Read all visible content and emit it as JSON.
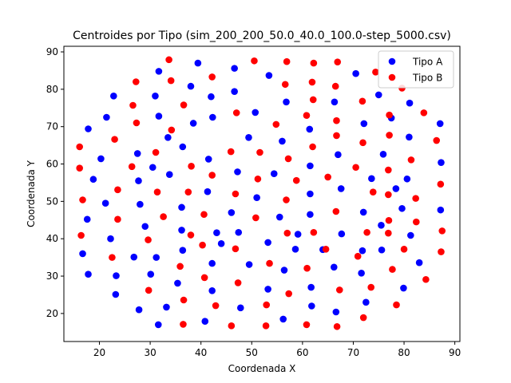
{
  "chart_data": {
    "type": "scatter",
    "title": "Centroides por Tipo (sim_200_200_50.0_40.0_100.0-step_5000.csv)",
    "xlabel": "Coordenada X",
    "ylabel": "Coordenada Y",
    "xlim": [
      13,
      91
    ],
    "ylim": [
      12.5,
      91.5
    ],
    "xticks": [
      20,
      30,
      40,
      50,
      60,
      70,
      80,
      90
    ],
    "yticks": [
      20,
      30,
      40,
      50,
      60,
      70,
      80,
      90
    ],
    "grid": false,
    "legend_position": "top-right",
    "series": [
      {
        "name": "Tipo A",
        "color": "#0000ff",
        "points": [
          [
            31.7,
            84.8
          ],
          [
            39.4,
            87.0
          ],
          [
            46.6,
            85.6
          ],
          [
            53.4,
            83.7
          ],
          [
            70.5,
            84.2
          ],
          [
            22.8,
            78.2
          ],
          [
            31.0,
            78.2
          ],
          [
            38.0,
            80.8
          ],
          [
            42.0,
            78.0
          ],
          [
            46.6,
            79.4
          ],
          [
            56.8,
            76.6
          ],
          [
            66.3,
            76.6
          ],
          [
            75.0,
            78.5
          ],
          [
            81.1,
            76.3
          ],
          [
            21.4,
            72.5
          ],
          [
            31.7,
            72.8
          ],
          [
            38.5,
            70.9
          ],
          [
            42.3,
            72.5
          ],
          [
            50.7,
            73.8
          ],
          [
            61.4,
            69.3
          ],
          [
            72.1,
            70.8
          ],
          [
            77.5,
            72.3
          ],
          [
            87.1,
            70.8
          ],
          [
            17.8,
            69.4
          ],
          [
            27.5,
            62.8
          ],
          [
            33.5,
            67.1
          ],
          [
            36.4,
            64.6
          ],
          [
            49.4,
            67.1
          ],
          [
            56.0,
            66.1
          ],
          [
            67.0,
            62.5
          ],
          [
            75.9,
            62.6
          ],
          [
            81.0,
            67.2
          ],
          [
            20.3,
            61.4
          ],
          [
            30.5,
            59.1
          ],
          [
            41.5,
            61.3
          ],
          [
            47.2,
            57.9
          ],
          [
            54.4,
            57.4
          ],
          [
            61.5,
            59.5
          ],
          [
            73.6,
            56.1
          ],
          [
            80.6,
            56.0
          ],
          [
            87.3,
            60.4
          ],
          [
            18.8,
            55.9
          ],
          [
            27.7,
            55.5
          ],
          [
            33.8,
            57.2
          ],
          [
            41.3,
            52.6
          ],
          [
            51.0,
            51.0
          ],
          [
            61.5,
            52.0
          ],
          [
            67.6,
            53.4
          ],
          [
            78.4,
            53.4
          ],
          [
            21.2,
            49.5
          ],
          [
            28.0,
            49.2
          ],
          [
            36.2,
            48.4
          ],
          [
            46.0,
            47.0
          ],
          [
            55.5,
            45.8
          ],
          [
            61.5,
            46.5
          ],
          [
            72.0,
            47.1
          ],
          [
            79.6,
            48.1
          ],
          [
            87.2,
            47.7
          ],
          [
            17.6,
            45.2
          ],
          [
            29.0,
            43.3
          ],
          [
            36.2,
            42.3
          ],
          [
            43.1,
            41.6
          ],
          [
            47.4,
            41.7
          ],
          [
            59.1,
            41.2
          ],
          [
            67.7,
            41.3
          ],
          [
            75.5,
            43.6
          ],
          [
            81.3,
            40.9
          ],
          [
            22.2,
            40.0
          ],
          [
            31.2,
            35.0
          ],
          [
            36.4,
            36.9
          ],
          [
            44.0,
            38.7
          ],
          [
            53.2,
            39.0
          ],
          [
            58.6,
            37.2
          ],
          [
            64.0,
            37.1
          ],
          [
            71.8,
            36.8
          ],
          [
            75.6,
            37.0
          ],
          [
            16.7,
            36.0
          ],
          [
            26.8,
            35.1
          ],
          [
            30.1,
            30.5
          ],
          [
            42.2,
            33.4
          ],
          [
            49.5,
            33.1
          ],
          [
            56.4,
            31.6
          ],
          [
            66.2,
            32.4
          ],
          [
            71.6,
            30.8
          ],
          [
            83.0,
            33.6
          ],
          [
            17.8,
            30.5
          ],
          [
            23.3,
            30.1
          ],
          [
            35.4,
            28.1
          ],
          [
            42.2,
            26.1
          ],
          [
            53.2,
            26.5
          ],
          [
            61.7,
            27.0
          ],
          [
            72.5,
            23.0
          ],
          [
            79.9,
            26.8
          ],
          [
            23.2,
            25.1
          ],
          [
            27.8,
            21.0
          ],
          [
            33.2,
            21.7
          ],
          [
            40.8,
            17.9
          ],
          [
            47.8,
            21.5
          ],
          [
            56.2,
            18.5
          ],
          [
            61.8,
            22.0
          ],
          [
            66.6,
            20.4
          ],
          [
            31.6,
            17.0
          ]
        ]
      },
      {
        "name": "Tipo B",
        "color": "#ff0000",
        "points": [
          [
            33.7,
            87.9
          ],
          [
            50.5,
            87.6
          ],
          [
            56.9,
            87.4
          ],
          [
            62.2,
            87.0
          ],
          [
            66.9,
            87.3
          ],
          [
            74.4,
            84.6
          ],
          [
            27.2,
            82.0
          ],
          [
            34.1,
            82.3
          ],
          [
            42.2,
            83.3
          ],
          [
            56.6,
            81.3
          ],
          [
            61.9,
            81.9
          ],
          [
            66.5,
            80.8
          ],
          [
            79.6,
            80.3
          ],
          [
            26.6,
            75.7
          ],
          [
            36.6,
            75.8
          ],
          [
            47.0,
            73.7
          ],
          [
            60.8,
            73.0
          ],
          [
            62.1,
            77.2
          ],
          [
            71.8,
            76.8
          ],
          [
            77.1,
            73.1
          ],
          [
            83.9,
            73.7
          ],
          [
            27.3,
            71.0
          ],
          [
            34.2,
            69.1
          ],
          [
            54.8,
            70.6
          ],
          [
            66.7,
            71.6
          ],
          [
            71.9,
            65.7
          ],
          [
            77.1,
            67.7
          ],
          [
            86.4,
            66.3
          ],
          [
            16.1,
            64.6
          ],
          [
            23.0,
            66.6
          ],
          [
            31.1,
            63.1
          ],
          [
            45.9,
            63.3
          ],
          [
            51.6,
            63.1
          ],
          [
            57.2,
            61.4
          ],
          [
            62.0,
            64.6
          ],
          [
            66.7,
            67.6
          ],
          [
            70.5,
            59.1
          ],
          [
            16.1,
            58.9
          ],
          [
            26.4,
            59.3
          ],
          [
            38.1,
            59.4
          ],
          [
            42.2,
            57.0
          ],
          [
            51.2,
            56.0
          ],
          [
            58.8,
            55.6
          ],
          [
            65.0,
            56.5
          ],
          [
            76.9,
            58.4
          ],
          [
            81.4,
            61.1
          ],
          [
            16.7,
            50.4
          ],
          [
            23.6,
            53.1
          ],
          [
            31.4,
            52.5
          ],
          [
            37.5,
            52.5
          ],
          [
            46.8,
            52.0
          ],
          [
            56.8,
            50.4
          ],
          [
            66.6,
            47.3
          ],
          [
            73.9,
            52.5
          ],
          [
            76.9,
            51.8
          ],
          [
            82.3,
            50.8
          ],
          [
            87.2,
            54.6
          ],
          [
            23.6,
            45.2
          ],
          [
            32.6,
            45.9
          ],
          [
            40.6,
            46.5
          ],
          [
            50.8,
            45.6
          ],
          [
            72.7,
            41.7
          ],
          [
            77.0,
            44.9
          ],
          [
            82.4,
            44.5
          ],
          [
            16.4,
            40.9
          ],
          [
            29.6,
            39.7
          ],
          [
            38.0,
            41.0
          ],
          [
            57.0,
            41.5
          ],
          [
            62.2,
            41.7
          ],
          [
            76.9,
            41.5
          ],
          [
            87.5,
            42.1
          ],
          [
            22.5,
            35.0
          ],
          [
            35.9,
            32.6
          ],
          [
            40.3,
            38.3
          ],
          [
            46.8,
            37.3
          ],
          [
            53.5,
            33.4
          ],
          [
            60.9,
            32.1
          ],
          [
            64.6,
            37.2
          ],
          [
            70.9,
            35.3
          ],
          [
            77.7,
            31.8
          ],
          [
            80.0,
            37.2
          ],
          [
            87.3,
            36.5
          ],
          [
            40.7,
            29.6
          ],
          [
            47.3,
            28.2
          ],
          [
            84.3,
            29.1
          ],
          [
            29.7,
            26.2
          ],
          [
            36.6,
            23.6
          ],
          [
            42.9,
            22.1
          ],
          [
            52.9,
            22.3
          ],
          [
            57.3,
            25.3
          ],
          [
            67.3,
            26.3
          ],
          [
            73.5,
            27.0
          ],
          [
            78.5,
            22.3
          ],
          [
            36.5,
            17.1
          ],
          [
            46.0,
            16.7
          ],
          [
            52.8,
            16.7
          ],
          [
            60.8,
            17.0
          ],
          [
            66.8,
            16.5
          ],
          [
            72.0,
            18.9
          ]
        ]
      }
    ]
  }
}
